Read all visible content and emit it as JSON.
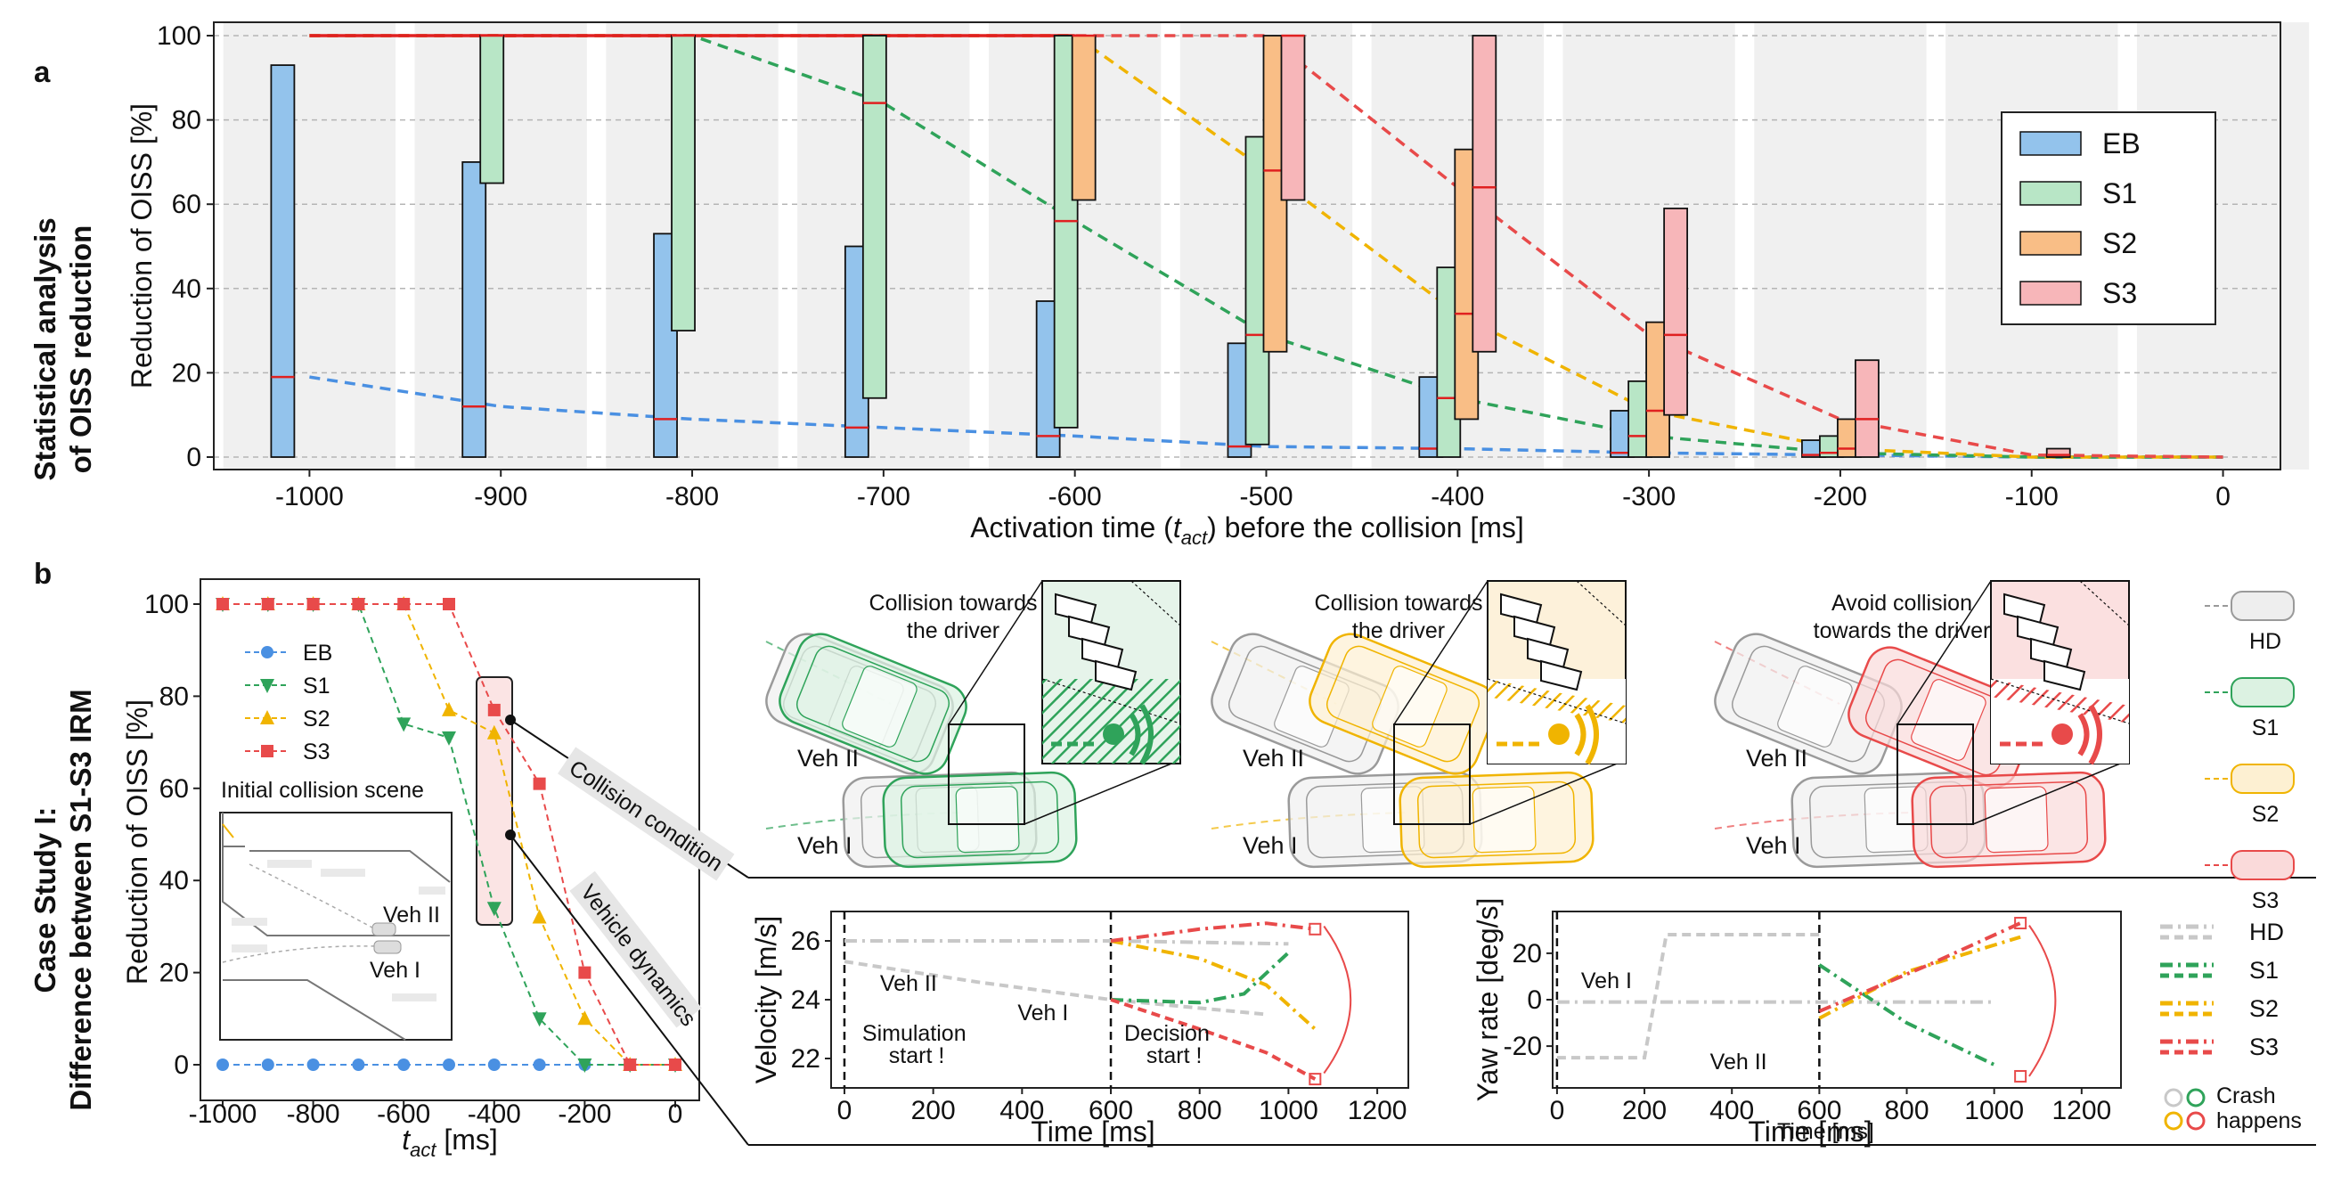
{
  "colors": {
    "EB": "#4a90e2",
    "EB_fill": "#93c3ec",
    "S1": "#2fa35a",
    "S1_fill": "#b8e6c6",
    "S2": "#f0b400",
    "S2_fill": "#f9be86",
    "S3": "#e84a4a",
    "S3_fill": "#f7b6b9",
    "HD": "#c8c8c8",
    "median": "#e02020"
  },
  "chart_data": [
    {
      "id": "a",
      "type": "bar",
      "panel_label": "a",
      "side_label": [
        "Statistical analysis",
        "of OISS reduction"
      ],
      "xlabel_pre": "Activation time (",
      "xlabel_var": "t",
      "xlabel_sub": "act",
      "xlabel_post": ") before the collision [ms]",
      "ylabel": "Reduction of OISS [%]",
      "xlim": [
        -1050,
        30
      ],
      "ylim": [
        0,
        100
      ],
      "xticks": [
        "-1000",
        "-900",
        "-800",
        "-700",
        "-600",
        "-500",
        "-400",
        "-300",
        "-200",
        "-100",
        "0"
      ],
      "yticks": [
        "0",
        "20",
        "40",
        "60",
        "80",
        "100"
      ],
      "legend": [
        "EB",
        "S1",
        "S2",
        "S3"
      ],
      "legend_position": "right",
      "grid": "horizontal dashed",
      "series": [
        {
          "name": "EB",
          "x": [
            -1000,
            -900,
            -800,
            -700,
            -600,
            -500,
            -400,
            -300,
            -200
          ],
          "low": [
            0,
            0,
            0,
            0,
            0,
            0,
            0,
            0,
            0
          ],
          "high": [
            93,
            70,
            53,
            50,
            37,
            27,
            19,
            11,
            4
          ],
          "median": [
            19,
            12,
            9,
            7,
            5,
            2.5,
            2,
            1,
            0.5
          ]
        },
        {
          "name": "S1",
          "x": [
            -900,
            -800,
            -700,
            -600,
            -500,
            -400,
            -300,
            -200
          ],
          "low": [
            65,
            30,
            14,
            7,
            3,
            0,
            0,
            0
          ],
          "high": [
            100,
            100,
            100,
            100,
            76,
            45,
            18,
            5
          ],
          "median": [
            100,
            100,
            84,
            56,
            29,
            14,
            5,
            1
          ]
        },
        {
          "name": "S2",
          "x": [
            -600,
            -500,
            -400,
            -300,
            -200
          ],
          "low": [
            61,
            25,
            9,
            0,
            0
          ],
          "high": [
            100,
            100,
            73,
            32,
            9
          ],
          "median": [
            100,
            68,
            34,
            11,
            2
          ]
        },
        {
          "name": "S3",
          "x": [
            -500,
            -400,
            -300,
            -200,
            -100
          ],
          "low": [
            61,
            25,
            10,
            0,
            0
          ],
          "high": [
            100,
            100,
            59,
            23,
            2
          ],
          "median": [
            100,
            64,
            29,
            9,
            0.5
          ]
        }
      ],
      "trend_lines": [
        {
          "name": "EB",
          "x": [
            -1000,
            -900,
            -800,
            -700,
            -600,
            -500,
            -400,
            -300,
            -200,
            -100,
            0
          ],
          "y": [
            19,
            12,
            9,
            7,
            5,
            2.5,
            2,
            1,
            0.5,
            0,
            0
          ]
        },
        {
          "name": "S1",
          "x": [
            -1000,
            -900,
            -800,
            -700,
            -600,
            -500,
            -400,
            -300,
            -200,
            -100,
            0
          ],
          "y": [
            100,
            100,
            100,
            84,
            56,
            29,
            14,
            5,
            1,
            0,
            0
          ]
        },
        {
          "name": "S2",
          "x": [
            -1000,
            -900,
            -800,
            -700,
            -600,
            -500,
            -400,
            -300,
            -200,
            -100,
            0
          ],
          "y": [
            100,
            100,
            100,
            100,
            100,
            68,
            34,
            11,
            2,
            0,
            0
          ]
        },
        {
          "name": "S3",
          "x": [
            -1000,
            -900,
            -800,
            -700,
            -600,
            -500,
            -400,
            -300,
            -200,
            -100,
            0
          ],
          "y": [
            100,
            100,
            100,
            100,
            100,
            100,
            64,
            29,
            9,
            0.5,
            0
          ]
        }
      ]
    },
    {
      "id": "b_main",
      "type": "line",
      "panel_label": "b",
      "side_label": [
        "Case Study I:",
        "Difference between S1-S3 IRM"
      ],
      "xlabel_var": "t",
      "xlabel_sub": "act",
      "xlabel_post": " [ms]",
      "ylabel": "Reduction of OISS [%]",
      "xlim": [
        -1000,
        0
      ],
      "ylim": [
        0,
        100
      ],
      "xticks": [
        "-1000",
        "-800",
        "-600",
        "-400",
        "-200",
        "0"
      ],
      "yticks": [
        "0",
        "20",
        "40",
        "60",
        "80",
        "100"
      ],
      "x": [
        -1000,
        -900,
        -800,
        -700,
        -600,
        -500,
        -400,
        -300,
        -200,
        -100,
        0
      ],
      "series": [
        {
          "name": "EB",
          "marker": "circle",
          "values": [
            0,
            0,
            0,
            0,
            0,
            0,
            0,
            0,
            0,
            0,
            0
          ]
        },
        {
          "name": "S1",
          "marker": "triangle-down",
          "values": [
            100,
            100,
            100,
            100,
            74,
            71,
            34,
            10,
            0,
            0,
            0
          ]
        },
        {
          "name": "S2",
          "marker": "triangle-up",
          "values": [
            100,
            100,
            100,
            100,
            100,
            77,
            72,
            32,
            10,
            0,
            0
          ]
        },
        {
          "name": "S3",
          "marker": "square",
          "values": [
            100,
            100,
            100,
            100,
            100,
            100,
            77,
            61,
            20,
            0,
            0
          ]
        }
      ],
      "legend": [
        "EB",
        "S1",
        "S2",
        "S3"
      ],
      "inset_title": "Initial collision scene",
      "inset_labels": [
        "Veh II",
        "Veh I"
      ],
      "annotations": [
        "Collision condition",
        "Vehicle dynamics"
      ]
    },
    {
      "id": "b_velocity",
      "type": "line",
      "ylabel": "Velocity [m/s]",
      "xlabel": "Time [ms]",
      "xlim": [
        -30,
        1270
      ],
      "ylim": [
        21,
        27
      ],
      "xticks": [
        "0",
        "200",
        "400",
        "600",
        "800",
        "1000",
        "1200"
      ],
      "yticks": [
        "22",
        "24",
        "26"
      ],
      "series": [
        {
          "name": "Veh II (HD)",
          "x": [
            0,
            600,
            1000
          ],
          "y": [
            26,
            26,
            25.9
          ]
        },
        {
          "name": "Veh I (HD)",
          "x": [
            0,
            300,
            600,
            950
          ],
          "y": [
            25.3,
            24.6,
            24.0,
            23.5
          ]
        },
        {
          "name": "S1",
          "x": [
            600,
            800,
            900,
            1000
          ],
          "y": [
            24.0,
            23.9,
            24.2,
            25.6
          ]
        },
        {
          "name": "S2",
          "x": [
            600,
            800,
            950,
            1060
          ],
          "y": [
            26,
            25.4,
            24.5,
            23.0
          ]
        },
        {
          "name": "S3",
          "x": [
            600,
            800,
            950,
            1060
          ],
          "y": [
            26,
            26.4,
            26.6,
            26.4
          ]
        },
        {
          "name": "S3 (Veh I)",
          "x": [
            600,
            800,
            950,
            1060
          ],
          "y": [
            24.0,
            23.0,
            22.2,
            21.3
          ]
        }
      ],
      "annotations": [
        "Veh II",
        "Veh I",
        "Simulation",
        "start !",
        "Decision",
        "start !"
      ]
    },
    {
      "id": "b_yaw",
      "type": "line",
      "ylabel": "Yaw rate [deg/s]",
      "xlabel": "Time [ms]",
      "xlim": [
        -10,
        1290
      ],
      "ylim": [
        -38,
        38
      ],
      "xticks": [
        "0",
        "200",
        "400",
        "600",
        "800",
        "1000",
        "1200"
      ],
      "yticks": [
        "-20",
        "0",
        "20"
      ],
      "series": [
        {
          "name": "Veh I (HD)",
          "x": [
            0,
            200,
            250,
            600
          ],
          "y": [
            -25,
            -25,
            28,
            28
          ]
        },
        {
          "name": "Veh II (HD)",
          "x": [
            0,
            600,
            1000
          ],
          "y": [
            -1,
            -1,
            -1
          ]
        },
        {
          "name": "S1",
          "x": [
            600,
            800,
            1000
          ],
          "y": [
            15,
            -10,
            -28
          ]
        },
        {
          "name": "S2",
          "x": [
            600,
            800,
            1060
          ],
          "y": [
            -8,
            12,
            27
          ]
        },
        {
          "name": "S3",
          "x": [
            600,
            850,
            1060
          ],
          "y": [
            -5,
            15,
            33
          ]
        }
      ],
      "annotations": [
        "Veh I",
        "Veh II"
      ]
    }
  ],
  "scene": {
    "vehicle_labels": [
      "Veh II",
      "Veh I"
    ],
    "captions": [
      [
        "Collision towards",
        "the driver"
      ],
      [
        "Collision towards",
        "the driver"
      ],
      [
        "Avoid collision",
        "towards the driver"
      ]
    ],
    "side_legend": [
      "HD",
      "S1",
      "S2",
      "S3"
    ],
    "crash_label": [
      "Crash",
      "happens"
    ],
    "cut_label": "Time [ms]"
  }
}
